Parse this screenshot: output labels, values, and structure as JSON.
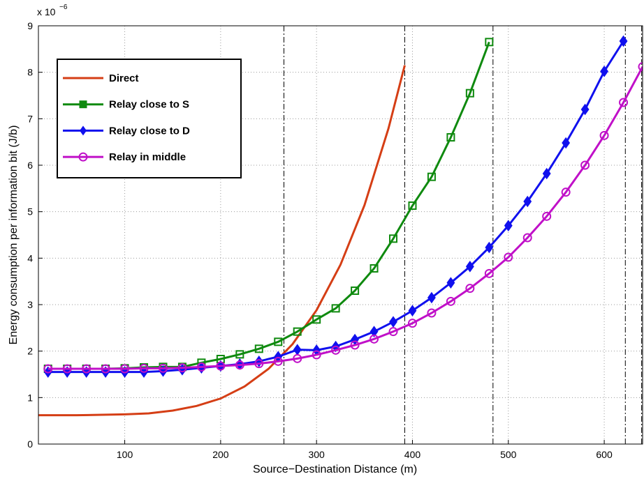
{
  "chart_data": {
    "type": "line",
    "xlabel": "Source−Destination Distance (m)",
    "ylabel": "Energy consumption per information bit (J/b)",
    "y_multiplier": {
      "base": "x 10",
      "exponent": "−6"
    },
    "xlim": [
      10,
      640
    ],
    "ylim": [
      0,
      9
    ],
    "xticks": [
      100,
      200,
      300,
      400,
      500,
      600
    ],
    "yticks": [
      0,
      1,
      2,
      3,
      4,
      5,
      6,
      7,
      8,
      9
    ],
    "grid": true,
    "legend": "upper left",
    "vlines": [
      266,
      392,
      484,
      622,
      639
    ],
    "series": [
      {
        "name": "Direct",
        "color": "#d53e15",
        "marker": "none",
        "x": [
          10,
          50,
          100,
          125,
          150,
          175,
          200,
          225,
          250,
          275,
          300,
          325,
          350,
          375,
          392
        ],
        "values": [
          0.62,
          0.62,
          0.64,
          0.66,
          0.72,
          0.82,
          0.98,
          1.24,
          1.62,
          2.15,
          2.88,
          3.86,
          5.14,
          6.79,
          8.15
        ]
      },
      {
        "name": "Relay close to S",
        "color": "#0f8a0f",
        "marker": "square",
        "x": [
          20,
          40,
          60,
          80,
          100,
          120,
          140,
          160,
          180,
          200,
          220,
          240,
          260,
          280,
          300,
          320,
          340,
          360,
          380,
          400,
          420,
          440,
          460,
          480
        ],
        "values": [
          1.62,
          1.62,
          1.62,
          1.62,
          1.63,
          1.65,
          1.66,
          1.66,
          1.75,
          1.83,
          1.93,
          2.05,
          2.2,
          2.42,
          2.68,
          2.92,
          3.3,
          3.78,
          4.42,
          5.13,
          5.75,
          6.6,
          7.55,
          8.65
        ]
      },
      {
        "name": "Relay close to D",
        "color": "#1010ee",
        "marker": "diamond",
        "x": [
          20,
          40,
          60,
          80,
          100,
          120,
          140,
          160,
          180,
          200,
          220,
          240,
          260,
          280,
          300,
          320,
          340,
          360,
          380,
          400,
          420,
          440,
          460,
          480,
          500,
          520,
          540,
          560,
          580,
          600,
          620
        ],
        "values": [
          1.55,
          1.55,
          1.55,
          1.55,
          1.55,
          1.55,
          1.57,
          1.6,
          1.64,
          1.68,
          1.72,
          1.78,
          1.88,
          2.03,
          2.02,
          2.1,
          2.25,
          2.42,
          2.63,
          2.87,
          3.15,
          3.47,
          3.82,
          4.23,
          4.7,
          5.22,
          5.82,
          6.48,
          7.2,
          8.02,
          8.67
        ]
      },
      {
        "name": "Relay in middle",
        "color": "#c010c8",
        "marker": "circle",
        "x": [
          20,
          40,
          60,
          80,
          100,
          120,
          140,
          160,
          180,
          200,
          220,
          240,
          260,
          280,
          300,
          320,
          340,
          360,
          380,
          400,
          420,
          440,
          460,
          480,
          500,
          520,
          540,
          560,
          580,
          600,
          620,
          640
        ],
        "values": [
          1.62,
          1.62,
          1.62,
          1.62,
          1.62,
          1.63,
          1.63,
          1.64,
          1.66,
          1.68,
          1.7,
          1.73,
          1.78,
          1.84,
          1.92,
          2.02,
          2.13,
          2.26,
          2.42,
          2.6,
          2.82,
          3.07,
          3.35,
          3.67,
          4.02,
          4.44,
          4.9,
          5.42,
          6.0,
          6.64,
          7.35,
          8.12
        ]
      }
    ]
  }
}
